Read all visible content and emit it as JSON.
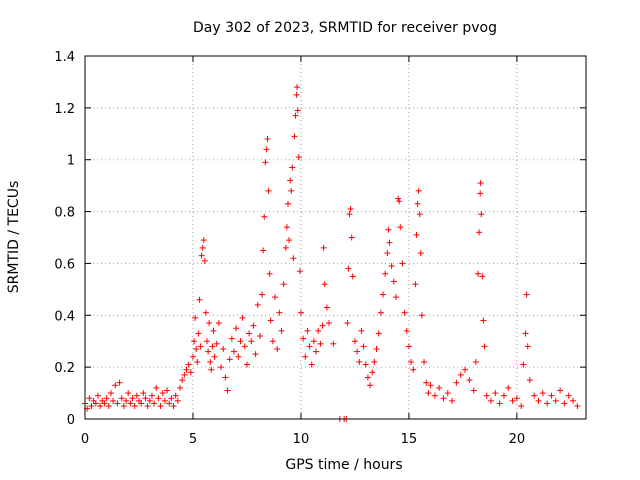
{
  "chart_data": {
    "type": "scatter",
    "title": "Day 302 of 2023, SRMTID for receiver pvog",
    "xlabel": "GPS time / hours",
    "ylabel": "SRMTID / TECUs",
    "xlim": [
      0,
      23.2
    ],
    "ylim": [
      0,
      1.4
    ],
    "x_ticks": [
      0,
      5,
      10,
      15,
      20
    ],
    "x_tick_labels": [
      "0",
      "5",
      "10",
      "15",
      "20"
    ],
    "y_ticks": [
      0,
      0.2,
      0.4,
      0.6,
      0.8,
      1,
      1.2,
      1.4
    ],
    "y_tick_labels": [
      "0",
      "0.2",
      "0.4",
      "0.6",
      "0.8",
      "1",
      "1.2",
      "1.4"
    ],
    "grid": true,
    "marker": "+",
    "marker_color": "#ff0000",
    "series": [
      {
        "name": "SRMTID",
        "points": [
          [
            0.0,
            0.06
          ],
          [
            0.1,
            0.04
          ],
          [
            0.2,
            0.08
          ],
          [
            0.3,
            0.05
          ],
          [
            0.4,
            0.07
          ],
          [
            0.5,
            0.06
          ],
          [
            0.6,
            0.09
          ],
          [
            0.7,
            0.05
          ],
          [
            0.8,
            0.07
          ],
          [
            0.9,
            0.06
          ],
          [
            1.0,
            0.08
          ],
          [
            1.1,
            0.05
          ],
          [
            1.2,
            0.1
          ],
          [
            1.3,
            0.07
          ],
          [
            1.4,
            0.13
          ],
          [
            1.5,
            0.06
          ],
          [
            1.6,
            0.14
          ],
          [
            1.7,
            0.08
          ],
          [
            1.8,
            0.05
          ],
          [
            1.9,
            0.07
          ],
          [
            2.0,
            0.1
          ],
          [
            2.1,
            0.06
          ],
          [
            2.2,
            0.08
          ],
          [
            2.3,
            0.05
          ],
          [
            2.4,
            0.09
          ],
          [
            2.5,
            0.07
          ],
          [
            2.6,
            0.06
          ],
          [
            2.7,
            0.1
          ],
          [
            2.8,
            0.08
          ],
          [
            2.9,
            0.05
          ],
          [
            3.0,
            0.07
          ],
          [
            3.1,
            0.09
          ],
          [
            3.2,
            0.06
          ],
          [
            3.3,
            0.12
          ],
          [
            3.4,
            0.08
          ],
          [
            3.5,
            0.05
          ],
          [
            3.6,
            0.1
          ],
          [
            3.7,
            0.07
          ],
          [
            3.8,
            0.11
          ],
          [
            3.9,
            0.06
          ],
          [
            4.0,
            0.08
          ],
          [
            4.1,
            0.05
          ],
          [
            4.2,
            0.09
          ],
          [
            4.3,
            0.07
          ],
          [
            4.4,
            0.12
          ],
          [
            4.5,
            0.15
          ],
          [
            4.6,
            0.17
          ],
          [
            4.7,
            0.19
          ],
          [
            4.8,
            0.21
          ],
          [
            4.9,
            0.18
          ],
          [
            5.0,
            0.24
          ],
          [
            5.05,
            0.3
          ],
          [
            5.1,
            0.39
          ],
          [
            5.15,
            0.27
          ],
          [
            5.2,
            0.22
          ],
          [
            5.25,
            0.33
          ],
          [
            5.3,
            0.46
          ],
          [
            5.35,
            0.28
          ],
          [
            5.4,
            0.63
          ],
          [
            5.45,
            0.66
          ],
          [
            5.5,
            0.69
          ],
          [
            5.55,
            0.61
          ],
          [
            5.6,
            0.41
          ],
          [
            5.65,
            0.3
          ],
          [
            5.7,
            0.26
          ],
          [
            5.75,
            0.37
          ],
          [
            5.8,
            0.22
          ],
          [
            5.85,
            0.19
          ],
          [
            5.9,
            0.28
          ],
          [
            5.95,
            0.34
          ],
          [
            6.0,
            0.24
          ],
          [
            6.1,
            0.29
          ],
          [
            6.2,
            0.37
          ],
          [
            6.3,
            0.2
          ],
          [
            6.4,
            0.27
          ],
          [
            6.5,
            0.16
          ],
          [
            6.6,
            0.11
          ],
          [
            6.7,
            0.23
          ],
          [
            6.8,
            0.31
          ],
          [
            6.9,
            0.26
          ],
          [
            7.0,
            0.35
          ],
          [
            7.1,
            0.24
          ],
          [
            7.2,
            0.3
          ],
          [
            7.3,
            0.39
          ],
          [
            7.4,
            0.28
          ],
          [
            7.5,
            0.21
          ],
          [
            7.6,
            0.33
          ],
          [
            7.7,
            0.3
          ],
          [
            7.8,
            0.36
          ],
          [
            7.9,
            0.25
          ],
          [
            8.0,
            0.44
          ],
          [
            8.1,
            0.32
          ],
          [
            8.2,
            0.48
          ],
          [
            8.25,
            0.65
          ],
          [
            8.3,
            0.78
          ],
          [
            8.35,
            0.99
          ],
          [
            8.4,
            1.04
          ],
          [
            8.45,
            1.08
          ],
          [
            8.5,
            0.88
          ],
          [
            8.55,
            0.56
          ],
          [
            8.6,
            0.38
          ],
          [
            8.7,
            0.3
          ],
          [
            8.8,
            0.47
          ],
          [
            8.9,
            0.27
          ],
          [
            9.0,
            0.41
          ],
          [
            9.1,
            0.34
          ],
          [
            9.2,
            0.52
          ],
          [
            9.3,
            0.66
          ],
          [
            9.35,
            0.74
          ],
          [
            9.4,
            0.83
          ],
          [
            9.45,
            0.69
          ],
          [
            9.5,
            0.92
          ],
          [
            9.55,
            0.88
          ],
          [
            9.6,
            0.97
          ],
          [
            9.65,
            0.62
          ],
          [
            9.7,
            1.09
          ],
          [
            9.75,
            1.17
          ],
          [
            9.8,
            1.25
          ],
          [
            9.82,
            1.28
          ],
          [
            9.85,
            1.19
          ],
          [
            9.9,
            1.01
          ],
          [
            9.95,
            0.57
          ],
          [
            10.0,
            0.41
          ],
          [
            10.1,
            0.31
          ],
          [
            10.2,
            0.24
          ],
          [
            10.3,
            0.34
          ],
          [
            10.4,
            0.28
          ],
          [
            10.5,
            0.21
          ],
          [
            10.6,
            0.3
          ],
          [
            10.7,
            0.26
          ],
          [
            10.8,
            0.34
          ],
          [
            10.9,
            0.29
          ],
          [
            11.0,
            0.36
          ],
          [
            11.05,
            0.66
          ],
          [
            11.1,
            0.52
          ],
          [
            11.2,
            0.43
          ],
          [
            11.3,
            0.37
          ],
          [
            11.5,
            0.29
          ],
          [
            11.8,
            0.0
          ],
          [
            12.0,
            0.0
          ],
          [
            12.1,
            0.0
          ],
          [
            12.15,
            0.37
          ],
          [
            12.2,
            0.58
          ],
          [
            12.25,
            0.79
          ],
          [
            12.3,
            0.81
          ],
          [
            12.35,
            0.7
          ],
          [
            12.4,
            0.55
          ],
          [
            12.5,
            0.3
          ],
          [
            12.6,
            0.26
          ],
          [
            12.7,
            0.22
          ],
          [
            12.8,
            0.34
          ],
          [
            12.9,
            0.28
          ],
          [
            13.0,
            0.21
          ],
          [
            13.1,
            0.16
          ],
          [
            13.2,
            0.13
          ],
          [
            13.3,
            0.18
          ],
          [
            13.4,
            0.22
          ],
          [
            13.5,
            0.27
          ],
          [
            13.6,
            0.33
          ],
          [
            13.7,
            0.41
          ],
          [
            13.8,
            0.48
          ],
          [
            13.9,
            0.56
          ],
          [
            14.0,
            0.64
          ],
          [
            14.05,
            0.73
          ],
          [
            14.1,
            0.68
          ],
          [
            14.2,
            0.59
          ],
          [
            14.3,
            0.53
          ],
          [
            14.4,
            0.47
          ],
          [
            14.5,
            0.85
          ],
          [
            14.55,
            0.84
          ],
          [
            14.6,
            0.74
          ],
          [
            14.7,
            0.6
          ],
          [
            14.8,
            0.41
          ],
          [
            14.9,
            0.34
          ],
          [
            15.0,
            0.28
          ],
          [
            15.1,
            0.22
          ],
          [
            15.2,
            0.19
          ],
          [
            15.3,
            0.52
          ],
          [
            15.35,
            0.71
          ],
          [
            15.4,
            0.83
          ],
          [
            15.45,
            0.88
          ],
          [
            15.5,
            0.79
          ],
          [
            15.55,
            0.64
          ],
          [
            15.6,
            0.4
          ],
          [
            15.7,
            0.22
          ],
          [
            15.8,
            0.14
          ],
          [
            15.9,
            0.1
          ],
          [
            16.0,
            0.13
          ],
          [
            16.2,
            0.09
          ],
          [
            16.4,
            0.12
          ],
          [
            16.6,
            0.08
          ],
          [
            16.8,
            0.1
          ],
          [
            17.0,
            0.07
          ],
          [
            17.2,
            0.14
          ],
          [
            17.4,
            0.17
          ],
          [
            17.6,
            0.19
          ],
          [
            17.8,
            0.15
          ],
          [
            18.0,
            0.11
          ],
          [
            18.1,
            0.22
          ],
          [
            18.2,
            0.56
          ],
          [
            18.25,
            0.72
          ],
          [
            18.3,
            0.87
          ],
          [
            18.32,
            0.91
          ],
          [
            18.35,
            0.79
          ],
          [
            18.4,
            0.55
          ],
          [
            18.45,
            0.38
          ],
          [
            18.5,
            0.28
          ],
          [
            18.6,
            0.09
          ],
          [
            18.8,
            0.07
          ],
          [
            19.0,
            0.1
          ],
          [
            19.2,
            0.06
          ],
          [
            19.4,
            0.09
          ],
          [
            19.6,
            0.12
          ],
          [
            19.8,
            0.07
          ],
          [
            20.0,
            0.08
          ],
          [
            20.2,
            0.05
          ],
          [
            20.3,
            0.21
          ],
          [
            20.4,
            0.33
          ],
          [
            20.45,
            0.48
          ],
          [
            20.5,
            0.28
          ],
          [
            20.6,
            0.15
          ],
          [
            20.8,
            0.09
          ],
          [
            21.0,
            0.07
          ],
          [
            21.2,
            0.1
          ],
          [
            21.4,
            0.06
          ],
          [
            21.6,
            0.09
          ],
          [
            21.8,
            0.07
          ],
          [
            22.0,
            0.11
          ],
          [
            22.2,
            0.06
          ],
          [
            22.4,
            0.09
          ],
          [
            22.6,
            0.07
          ],
          [
            22.8,
            0.05
          ]
        ]
      }
    ]
  }
}
